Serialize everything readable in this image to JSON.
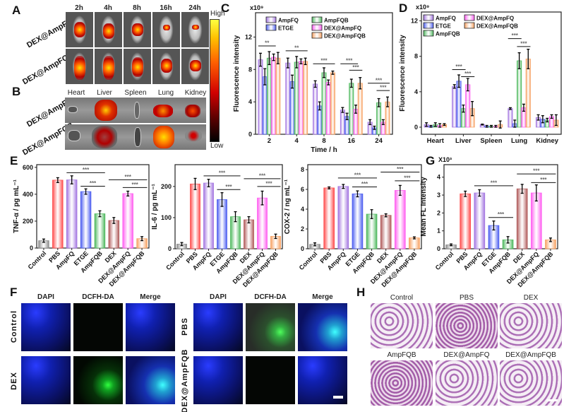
{
  "panel_labels": {
    "A": "A",
    "B": "B",
    "C": "C",
    "D": "D",
    "E": "E",
    "F": "F",
    "G": "G",
    "H": "H"
  },
  "panelA": {
    "timepoints": [
      "2h",
      "4h",
      "8h",
      "16h",
      "24h"
    ],
    "rows": [
      "DEX@AmpFQ",
      "DEX@AmpFQB"
    ],
    "colorbar": {
      "high": "High",
      "low": "Low"
    }
  },
  "panelB": {
    "organs": [
      "Heart",
      "Liver",
      "Spleen",
      "Lung",
      "Kidney"
    ],
    "rows": [
      "DEX@AmpFQ",
      "DEX@AmpFQB"
    ]
  },
  "panelF": {
    "channels": [
      "DAPI",
      "DCFH-DA",
      "Merge"
    ],
    "left_rows": [
      "Control",
      "DEX"
    ],
    "right_rows": [
      "PBS",
      "DEX@AmpFQB"
    ]
  },
  "panelH": {
    "titles": [
      "Control",
      "PBS",
      "DEX",
      "AmpFQB",
      "DEX@AmpFQ",
      "DEX@AmpFQB"
    ]
  },
  "colors": {
    "Control": "#8a8a8a",
    "PBS": "#ff4a4a",
    "AmpFQ": "#a274e0",
    "ETGE": "#4a5cf0",
    "AmpFQB": "#4cb85c",
    "DEX": "#b05a5a",
    "DEX@AmpFQ": "#ff5cf0",
    "DEX@AmpFQB": "#f7a060"
  },
  "chart_data": [
    {
      "id": "C",
      "type": "bar",
      "title": "",
      "xlabel": "Time / h",
      "ylabel": "Fluorescence intensity",
      "yscale_label": "x10⁹",
      "ylim": [
        0,
        15
      ],
      "yticks": [
        0,
        4,
        8,
        12
      ],
      "legend": "top",
      "categories": [
        "2",
        "4",
        "8",
        "16",
        "24"
      ],
      "series": [
        {
          "name": "AmpFQ",
          "values": [
            9.2,
            8.8,
            6.2,
            3.0,
            1.5
          ],
          "errors": [
            0.8,
            0.6,
            0.4,
            0.3,
            0.3
          ]
        },
        {
          "name": "ETGE",
          "values": [
            7.1,
            6.5,
            3.5,
            2.2,
            0.8
          ],
          "errors": [
            1.0,
            0.8,
            0.5,
            0.4,
            0.2
          ]
        },
        {
          "name": "AmpFQB",
          "values": [
            9.4,
            8.9,
            7.6,
            6.3,
            3.9
          ],
          "errors": [
            0.8,
            0.7,
            0.6,
            0.5,
            0.5
          ]
        },
        {
          "name": "DEX@AmpFQ",
          "values": [
            9.5,
            9.0,
            6.4,
            3.1,
            1.5
          ],
          "errors": [
            0.4,
            0.3,
            0.3,
            0.5,
            0.3
          ]
        },
        {
          "name": "DEX@AmpFQB",
          "values": [
            9.4,
            9.0,
            7.6,
            6.3,
            4.0
          ],
          "errors": [
            0.7,
            0.4,
            0.2,
            0.7,
            0.6
          ]
        }
      ],
      "significance": [
        {
          "group": 0,
          "a": 0,
          "b": 3,
          "y": 10.9,
          "label": "**"
        },
        {
          "group": 1,
          "a": 0,
          "b": 4,
          "y": 10.3,
          "label": "**"
        },
        {
          "group": 2,
          "a": 0,
          "b": 4,
          "y": 8.7,
          "label": "***"
        },
        {
          "group": 3,
          "a": 0,
          "b": 3,
          "y": 8.7,
          "label": "***"
        },
        {
          "group": 3,
          "a": 2,
          "b": 4,
          "y": 7.9,
          "label": "***"
        },
        {
          "group": 4,
          "a": 0,
          "b": 4,
          "y": 6.3,
          "label": "***"
        },
        {
          "group": 4,
          "a": 2,
          "b": 4,
          "y": 5.4,
          "label": "***"
        }
      ]
    },
    {
      "id": "D",
      "type": "bar",
      "title": "",
      "xlabel": "",
      "ylabel": "Fluorescence intensity",
      "yscale_label": "x10⁹",
      "ylim": [
        -0.8,
        13
      ],
      "yticks": [
        0,
        4,
        8,
        12
      ],
      "legend": "top-left",
      "categories": [
        "Heart",
        "Liver",
        "Spleen",
        "Lung",
        "Kidney"
      ],
      "series": [
        {
          "name": "AmpFQ",
          "values": [
            0.3,
            4.6,
            0.3,
            2.1,
            1.1
          ],
          "errors": [
            0.2,
            0.2,
            0.05,
            0.1,
            0.3
          ]
        },
        {
          "name": "ETGE",
          "values": [
            0.1,
            5.2,
            0.1,
            0.4,
            0.9
          ],
          "errors": [
            0.1,
            0.7,
            0.1,
            0.4,
            0.4
          ]
        },
        {
          "name": "AmpFQB",
          "values": [
            0.3,
            2.1,
            0.1,
            7.5,
            0.8
          ],
          "errors": [
            0.2,
            0.4,
            0.1,
            0.9,
            0.2
          ]
        },
        {
          "name": "DEX@AmpFQ",
          "values": [
            0.2,
            4.8,
            0.1,
            2.2,
            1.2
          ],
          "errors": [
            0.2,
            0.7,
            0.1,
            0.4,
            0.2
          ]
        },
        {
          "name": "DEX@AmpFQB",
          "values": [
            0.3,
            2.1,
            0.3,
            7.7,
            0.8
          ],
          "errors": [
            0.1,
            0.8,
            0.4,
            1.1,
            0.6
          ]
        }
      ],
      "significance": [
        {
          "group": 1,
          "a": 0,
          "b": 2,
          "y": 6.5,
          "label": "***"
        },
        {
          "group": 1,
          "a": 2,
          "b": 4,
          "y": 5.7,
          "label": "***"
        },
        {
          "group": 3,
          "a": 0,
          "b": 2,
          "y": 10.0,
          "label": "***"
        },
        {
          "group": 3,
          "a": 2,
          "b": 4,
          "y": 9.1,
          "label": "***"
        }
      ]
    },
    {
      "id": "E1",
      "type": "bar",
      "ylabel": "TNF-α / pg mL⁻¹",
      "ylim": [
        0,
        620
      ],
      "yticks": [
        0,
        200,
        400,
        600
      ],
      "categories": [
        "Control",
        "PBS",
        "AmpFQ",
        "ETGE",
        "AmpFQB",
        "DEX",
        "DEX@AmpFQ",
        "DEX@AmpFQB"
      ],
      "values": [
        55,
        505,
        507,
        420,
        255,
        205,
        405,
        70
      ],
      "errors": [
        12,
        18,
        30,
        20,
        22,
        22,
        18,
        15
      ],
      "significance": [
        {
          "a": 2,
          "b": 4,
          "y": 560,
          "label": "***"
        },
        {
          "a": 3,
          "b": 4,
          "y": 460,
          "label": "***"
        },
        {
          "a": 5,
          "b": 7,
          "y": 508,
          "label": "***"
        },
        {
          "a": 6,
          "b": 7,
          "y": 450,
          "label": "***"
        }
      ]
    },
    {
      "id": "E2",
      "type": "bar",
      "ylabel": "IL-6 / pg mL⁻¹",
      "ylim": [
        0,
        270
      ],
      "yticks": [
        0,
        100,
        200
      ],
      "categories": [
        "Control",
        "PBS",
        "AmpFQ",
        "ETGE",
        "AmpFQB",
        "DEX",
        "DEX@AmpFQ",
        "DEX@AmpFQB"
      ],
      "values": [
        15,
        208,
        211,
        158,
        103,
        93,
        163,
        40
      ],
      "errors": [
        5,
        18,
        12,
        22,
        16,
        10,
        22,
        7
      ],
      "significance": [
        {
          "a": 2,
          "b": 4,
          "y": 234,
          "label": "***"
        },
        {
          "a": 3,
          "b": 4,
          "y": 190,
          "label": "***"
        },
        {
          "a": 5,
          "b": 7,
          "y": 225,
          "label": "***"
        },
        {
          "a": 6,
          "b": 7,
          "y": 200,
          "label": "***"
        }
      ]
    },
    {
      "id": "E3",
      "type": "bar",
      "ylabel": "COX-2 / ng mL⁻¹",
      "ylim": [
        0,
        8.5
      ],
      "yticks": [
        0,
        2,
        4,
        6,
        8
      ],
      "categories": [
        "Control",
        "PBS",
        "AmpFQ",
        "ETGE",
        "AmpFQB",
        "DEX",
        "DEX@AmpFQ",
        "DEX@AmpFQB"
      ],
      "values": [
        0.45,
        6.15,
        6.3,
        5.55,
        3.5,
        3.38,
        5.9,
        1.1
      ],
      "errors": [
        0.15,
        0.1,
        0.2,
        0.3,
        0.45,
        0.15,
        0.5,
        0.1
      ],
      "significance": [
        {
          "a": 2,
          "b": 4,
          "y": 7.15,
          "label": "***"
        },
        {
          "a": 3,
          "b": 4,
          "y": 6.25,
          "label": "***"
        },
        {
          "a": 5,
          "b": 7,
          "y": 7.75,
          "label": "***"
        },
        {
          "a": 6,
          "b": 7,
          "y": 6.87,
          "label": "***"
        }
      ]
    },
    {
      "id": "G",
      "type": "bar",
      "ylabel": "Mean FL Intensity",
      "yscale_label": "X10³",
      "ylim": [
        0,
        4.7
      ],
      "yticks": [
        0,
        1,
        2,
        3,
        4
      ],
      "categories": [
        "Control",
        "PBS",
        "AmpFQ",
        "ETGE",
        "AmpFQB",
        "DEX",
        "DEX@AmpFQ",
        "DEX@AmpFQB"
      ],
      "values": [
        0.22,
        3.07,
        3.12,
        1.3,
        0.5,
        3.35,
        3.12,
        0.5
      ],
      "errors": [
        0.05,
        0.15,
        0.18,
        0.25,
        0.18,
        0.25,
        0.45,
        0.1
      ],
      "significance": [
        {
          "a": 2,
          "b": 4,
          "y": 3.52,
          "label": "***"
        },
        {
          "a": 3,
          "b": 4,
          "y": 1.75,
          "label": "***"
        },
        {
          "a": 5,
          "b": 7,
          "y": 4.18,
          "label": "***"
        },
        {
          "a": 6,
          "b": 7,
          "y": 3.7,
          "label": "***"
        }
      ]
    }
  ]
}
